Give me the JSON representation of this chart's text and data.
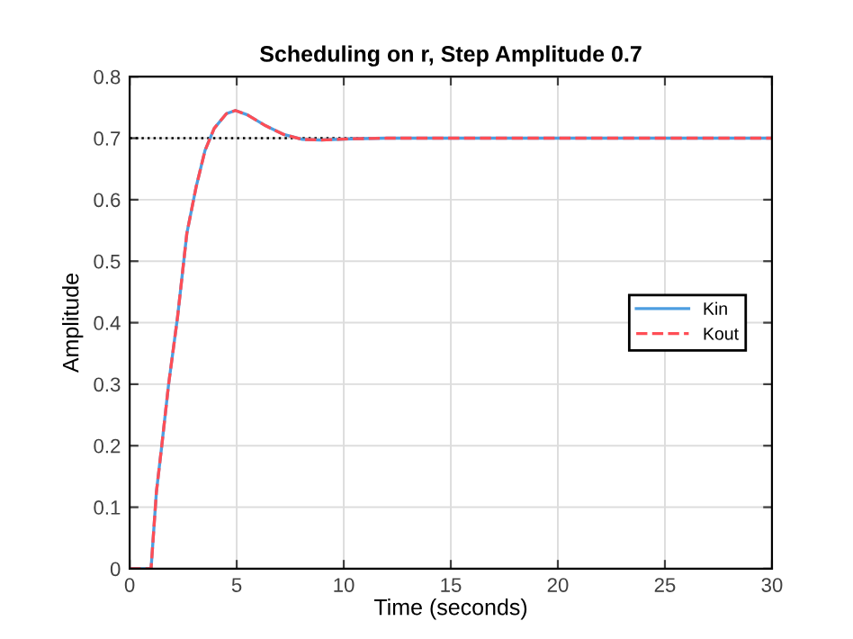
{
  "chart_data": {
    "type": "line",
    "title": "Scheduling on r, Step Amplitude 0.7",
    "xlabel": "Time (seconds)",
    "ylabel": "Amplitude",
    "x": [
      0,
      1.0,
      1.25,
      1.5,
      1.82,
      2.24,
      2.67,
      3.1,
      3.52,
      3.95,
      4.52,
      4.94,
      5.5,
      6.36,
      7.2,
      8.07,
      8.9,
      10.3,
      12,
      15,
      20,
      25,
      30
    ],
    "series": [
      {
        "name": "Kin",
        "color": "#4d9ee0",
        "line_style": "solid",
        "values": [
          0,
          0,
          0.125,
          0.2,
          0.3,
          0.41,
          0.545,
          0.62,
          0.68,
          0.716,
          0.74,
          0.745,
          0.738,
          0.72,
          0.706,
          0.698,
          0.697,
          0.699,
          0.7,
          0.7,
          0.7,
          0.7,
          0.7
        ]
      },
      {
        "name": "Kout",
        "color": "#ff4d55",
        "line_style": "dashed",
        "values": [
          0,
          0,
          0.125,
          0.2,
          0.3,
          0.41,
          0.545,
          0.62,
          0.68,
          0.716,
          0.74,
          0.745,
          0.738,
          0.72,
          0.706,
          0.698,
          0.697,
          0.699,
          0.7,
          0.7,
          0.7,
          0.7,
          0.7
        ]
      }
    ],
    "ref_lines": [
      {
        "axis": "y",
        "value": 0.7,
        "color": "#000000",
        "line_style": "dotted"
      }
    ],
    "xlim": [
      0,
      30
    ],
    "ylim": [
      0,
      0.8
    ],
    "xticks": [
      0,
      5,
      10,
      15,
      20,
      25,
      30
    ],
    "yticks": [
      0,
      0.1,
      0.2,
      0.3,
      0.4,
      0.5,
      0.6,
      0.7,
      0.8
    ],
    "grid": true,
    "legend": "right"
  }
}
